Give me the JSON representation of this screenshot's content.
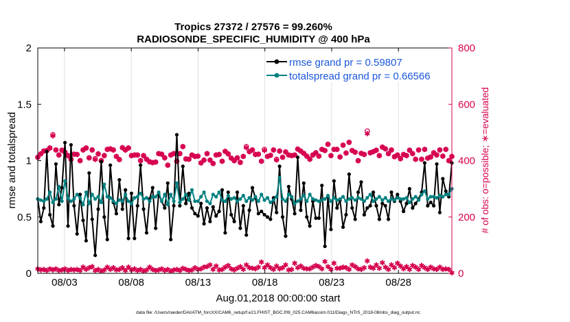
{
  "chart_data": {
    "type": "line",
    "title": "Tropics 27372 / 27576 = 99.260%",
    "subtitle": "RADIOSONDE_SPECIFIC_HUMIDITY @ 400 hPa",
    "xlabel": "Aug.01,2018 00:00:00 start",
    "ylabel": "rmse and totalspread",
    "y2label": "# of obs: o=possible; ∗=evaluated",
    "footer": "data file: /Users/raeder/DAI/ATM_forcXX/CAM6_setup/f.e21.FHIST_BGC.f09_025.CAM6assim.011/Diags_NTrS_2018-08/obs_diag_output.nc",
    "xlim": [
      1.0,
      32.0
    ],
    "ylim": [
      0,
      2
    ],
    "y2lim": [
      0,
      800
    ],
    "x_ticks": [
      3,
      8,
      13,
      18,
      23,
      28
    ],
    "x_tick_labels": [
      "08/03",
      "08/08",
      "08/13",
      "08/18",
      "08/23",
      "08/28"
    ],
    "y_ticks": [
      "0",
      "0.5",
      "1",
      "1.5",
      "2"
    ],
    "y2_ticks": [
      "0",
      "200",
      "400",
      "600",
      "800"
    ],
    "legend_location": "top-right",
    "colors": {
      "rmse": "#000000",
      "spread": "#008080",
      "obs": "#d6004f"
    },
    "series": [
      {
        "name": "rmse grand pr = 0.59807",
        "key": "rmse",
        "values": [
          0.66,
          0.46,
          0.58,
          1.08,
          0.52,
          0.42,
          0.97,
          0.61,
          0.76,
          1.16,
          0.42,
          1.14,
          0.6,
          0.35,
          0.7,
          0.47,
          0.29,
          0.89,
          0.48,
          0.16,
          0.57,
          0.99,
          0.5,
          0.3,
          0.96,
          0.63,
          0.53,
          0.83,
          0.57,
          0.74,
          0.31,
          0.71,
          0.31,
          0.6,
          0.96,
          0.57,
          0.36,
          0.66,
          0.76,
          0.4,
          0.7,
          0.64,
          0.58,
          0.8,
          0.3,
          0.6,
          1.23,
          0.6,
          0.95,
          0.62,
          0.71,
          0.58,
          0.53,
          0.51,
          0.62,
          0.44,
          0.58,
          0.46,
          0.59,
          0.51,
          0.55,
          0.74,
          0.36,
          0.72,
          0.52,
          0.46,
          0.72,
          0.4,
          0.6,
          0.34,
          0.56,
          0.76,
          0.67,
          0.53,
          0.55,
          0.52,
          0.5,
          0.48,
          0.67,
          0.54,
          0.95,
          0.5,
          0.33,
          0.77,
          0.66,
          0.53,
          1.03,
          0.56,
          0.8,
          0.5,
          0.42,
          0.64,
          0.49,
          0.49,
          0.78,
          0.24,
          0.68,
          0.39,
          0.82,
          0.58,
          0.65,
          0.41,
          0.52,
          0.88,
          0.58,
          0.48,
          0.72,
          0.81,
          0.52,
          0.58,
          0.6,
          0.72,
          0.6,
          0.48,
          0.62,
          0.6,
          0.48,
          0.72,
          0.64,
          0.7,
          0.64,
          0.55,
          0.62,
          0.75,
          0.58,
          0.62,
          0.66,
          0.72,
          0.98,
          0.6,
          0.63,
          0.6,
          0.97,
          0.54,
          0.84,
          0.73,
          0.68,
          0.98
        ]
      },
      {
        "name": "totalspread grand pr = 0.66566",
        "key": "spread",
        "values": [
          0.66,
          0.65,
          0.64,
          0.66,
          0.72,
          0.63,
          0.66,
          0.77,
          0.64,
          0.82,
          0.67,
          0.64,
          0.66,
          0.7,
          0.67,
          0.61,
          0.72,
          0.62,
          0.7,
          0.66,
          0.68,
          0.63,
          0.79,
          0.68,
          0.67,
          0.64,
          0.62,
          0.65,
          0.64,
          0.7,
          0.64,
          0.62,
          0.67,
          0.68,
          0.71,
          0.66,
          0.67,
          0.64,
          0.68,
          0.68,
          0.72,
          0.64,
          0.7,
          0.61,
          0.7,
          0.64,
          0.8,
          0.63,
          0.66,
          0.7,
          0.65,
          0.74,
          0.64,
          0.64,
          0.68,
          0.72,
          0.64,
          0.62,
          0.7,
          0.68,
          0.72,
          0.65,
          0.64,
          0.69,
          0.66,
          0.67,
          0.64,
          0.66,
          0.69,
          0.64,
          0.67,
          0.65,
          0.68,
          0.64,
          0.7,
          0.65,
          0.67,
          0.63,
          0.65,
          0.68,
          0.85,
          0.66,
          0.64,
          0.7,
          0.68,
          0.62,
          0.64,
          0.66,
          0.69,
          0.64,
          0.7,
          0.66,
          0.65,
          0.64,
          0.65,
          0.66,
          0.69,
          0.64,
          0.67,
          0.65,
          0.66,
          0.68,
          0.64,
          0.66,
          0.67,
          0.65,
          0.67,
          0.66,
          0.64,
          0.67,
          0.7,
          0.64,
          0.66,
          0.68,
          0.65,
          0.67,
          0.64,
          0.66,
          0.65,
          0.67,
          0.66,
          0.66,
          0.67,
          0.63,
          0.66,
          0.68,
          0.65,
          0.7,
          0.73,
          0.66,
          0.68,
          0.68,
          0.67,
          0.69,
          0.68,
          0.7,
          0.7,
          0.75
        ]
      }
    ],
    "obs_possible": {
      "name": "possible",
      "values": [
        412,
        424,
        434,
        436,
        445,
        492,
        438,
        420,
        437,
        430,
        418,
        405,
        423,
        422,
        400,
        438,
        445,
        410,
        438,
        407,
        424,
        400,
        418,
        440,
        442,
        438,
        415,
        404,
        446,
        438,
        445,
        418,
        420,
        420,
        400,
        418,
        405,
        396,
        393,
        395,
        425,
        423,
        410,
        384,
        420,
        425,
        398,
        425,
        450,
        406,
        405,
        420,
        415,
        416,
        392,
        402,
        425,
        402,
        390,
        420,
        422,
        398,
        433,
        424,
        409,
        400,
        410,
        394,
        415,
        450,
        432,
        438,
        422,
        423,
        398,
        440,
        415,
        419,
        438,
        405,
        434,
        412,
        431,
        420,
        418,
        420,
        441,
        434,
        426,
        416,
        405,
        420,
        428,
        416,
        440,
        436,
        458,
        418,
        440,
        440,
        413,
        455,
        427,
        465,
        436,
        430,
        400,
        426,
        422,
        505,
        428,
        432,
        437,
        418,
        448,
        442,
        425,
        438,
        414,
        420,
        407,
        422,
        418,
        437,
        425,
        405,
        438,
        405,
        440,
        409,
        413,
        428,
        420,
        438,
        416,
        440,
        400,
        415
      ]
    },
    "obs_evaluated": {
      "name": "evaluated",
      "values": [
        412,
        424,
        434,
        436,
        445,
        488,
        438,
        420,
        437,
        430,
        418,
        405,
        423,
        422,
        400,
        438,
        445,
        410,
        438,
        404,
        424,
        400,
        418,
        440,
        442,
        438,
        415,
        404,
        446,
        438,
        445,
        418,
        420,
        420,
        400,
        418,
        405,
        396,
        393,
        395,
        425,
        423,
        410,
        384,
        420,
        425,
        398,
        425,
        450,
        406,
        405,
        420,
        415,
        416,
        392,
        402,
        425,
        402,
        390,
        420,
        422,
        398,
        433,
        424,
        409,
        400,
        410,
        394,
        415,
        446,
        432,
        438,
        422,
        423,
        398,
        436,
        415,
        419,
        438,
        402,
        434,
        412,
        431,
        420,
        418,
        420,
        441,
        434,
        426,
        416,
        405,
        420,
        428,
        416,
        440,
        436,
        458,
        418,
        440,
        440,
        413,
        455,
        427,
        465,
        436,
        430,
        400,
        426,
        422,
        496,
        428,
        432,
        437,
        418,
        448,
        442,
        425,
        438,
        414,
        420,
        407,
        422,
        418,
        437,
        425,
        405,
        438,
        405,
        440,
        409,
        413,
        428,
        420,
        438,
        416,
        440,
        400,
        415
      ]
    },
    "obs_low": {
      "name": "evaluated-low",
      "values": [
        16,
        12,
        14,
        10,
        16,
        12,
        16,
        10,
        12,
        16,
        10,
        14,
        12,
        14,
        10,
        22,
        14,
        20,
        24,
        10,
        14,
        8,
        12,
        22,
        14,
        20,
        12,
        14,
        20,
        10,
        22,
        12,
        16,
        10,
        14,
        8,
        12,
        22,
        14,
        10,
        12,
        16,
        10,
        14,
        8,
        12,
        14,
        10,
        18,
        14,
        10,
        12,
        20,
        14,
        16,
        22,
        24,
        30,
        14,
        26,
        12,
        14,
        22,
        28,
        16,
        12,
        18,
        24,
        14,
        30,
        20,
        18,
        16,
        22,
        40,
        20,
        30,
        20,
        14,
        26,
        16,
        20,
        30,
        12,
        14,
        36,
        20,
        26,
        18,
        16,
        16,
        22,
        28,
        24,
        16,
        42,
        24,
        14,
        36,
        18,
        18,
        22,
        20,
        14,
        30,
        24,
        16,
        14,
        20,
        44,
        22,
        18,
        30,
        18,
        38,
        22,
        14,
        30,
        20,
        36,
        26,
        16,
        24,
        14,
        28,
        22,
        14,
        28,
        20,
        14,
        22,
        16,
        14,
        22,
        14,
        16,
        14,
        2
      ]
    }
  }
}
